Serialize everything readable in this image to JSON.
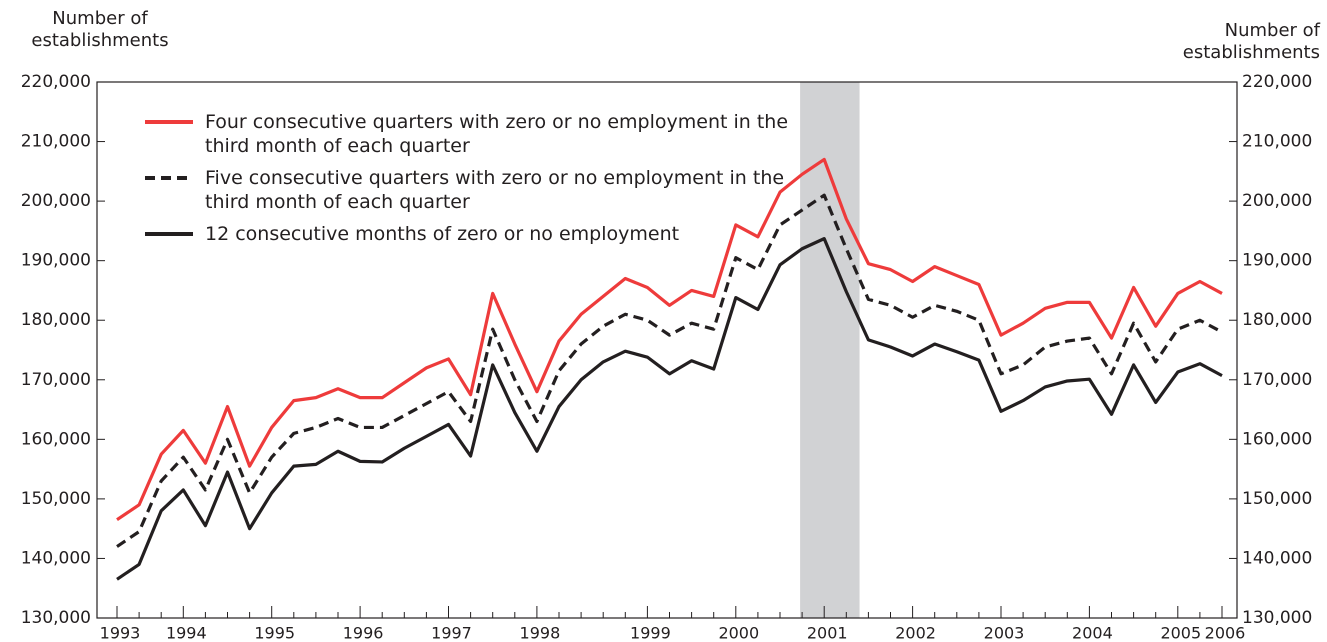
{
  "chart_data": {
    "type": "line",
    "y_label": "Number of establishments",
    "y2_label": "Number of establishments",
    "categories": [
      "1993",
      null,
      null,
      "1994",
      null,
      null,
      null,
      "1995",
      null,
      null,
      null,
      "1996",
      null,
      null,
      null,
      "1997",
      null,
      null,
      null,
      "1998",
      null,
      null,
      null,
      null,
      "1999",
      null,
      null,
      null,
      "2000",
      null,
      null,
      null,
      "2001",
      null,
      null,
      null,
      "2002",
      null,
      null,
      null,
      "2003",
      null,
      null,
      null,
      "2004",
      null,
      null,
      null,
      "2005",
      null,
      "2006"
    ],
    "series": [
      {
        "name": "Four consecutive quarters with zero or no employment in the third month of each quarter",
        "color": "#ee3b3b",
        "style": "solid",
        "values": [
          146500,
          149000,
          157500,
          161500,
          156000,
          165500,
          155500,
          162000,
          166500,
          167000,
          168500,
          167000,
          167000,
          169500,
          172000,
          173500,
          167500,
          184500,
          176000,
          168000,
          176500,
          181000,
          184000,
          187000,
          185500,
          182500,
          185000,
          184000,
          196000,
          194000,
          201500,
          204500,
          207000,
          197000,
          189500,
          188500,
          186500,
          189000,
          187500,
          186000,
          177500,
          179500,
          182000,
          183000,
          183000,
          177000,
          185500,
          179000,
          184500,
          186500,
          184500
        ]
      },
      {
        "name": "Five consecutive quarters with zero or no employment in the third month of each quarter",
        "color": "#231f20",
        "style": "dashed",
        "values": [
          142000,
          144500,
          153000,
          157000,
          151500,
          160000,
          151000,
          157000,
          161000,
          162000,
          163500,
          162000,
          162000,
          164000,
          166000,
          168000,
          163000,
          178500,
          170000,
          163000,
          171500,
          176000,
          179000,
          181000,
          180000,
          177500,
          179500,
          178500,
          190500,
          188500,
          196000,
          198500,
          201000,
          192000,
          183500,
          182500,
          180500,
          182500,
          181500,
          180000,
          171000,
          172500,
          175500,
          176500,
          177000,
          171000,
          179500,
          173000,
          178500,
          180000,
          178000
        ]
      },
      {
        "name": "12 consecutive months of zero or no employment",
        "color": "#231f20",
        "style": "solid",
        "values": [
          136500,
          139000,
          148000,
          151500,
          145500,
          154500,
          145000,
          151000,
          155500,
          155800,
          158000,
          156300,
          156200,
          158500,
          160500,
          162500,
          157200,
          172500,
          164500,
          158000,
          165500,
          170000,
          173000,
          174800,
          173800,
          171000,
          173200,
          171800,
          183800,
          181800,
          189300,
          192000,
          193700,
          184800,
          176700,
          175500,
          174000,
          176000,
          174700,
          173300,
          164700,
          166500,
          168800,
          169800,
          170100,
          164200,
          172500,
          166200,
          171300,
          172700,
          170700
        ]
      }
    ],
    "ylim": [
      130000,
      220000
    ],
    "yticks": [
      {
        "value": 130000,
        "label": "130,000"
      },
      {
        "value": 140000,
        "label": "140,000"
      },
      {
        "value": 150000,
        "label": "150,000"
      },
      {
        "value": 160000,
        "label": "160,000"
      },
      {
        "value": 170000,
        "label": "170,000"
      },
      {
        "value": 180000,
        "label": "180,000"
      },
      {
        "value": 190000,
        "label": "190,000"
      },
      {
        "value": 200000,
        "label": "200,000"
      },
      {
        "value": 210000,
        "label": "210,000"
      },
      {
        "value": 220000,
        "label": "220,000"
      }
    ],
    "y2lim": [
      130000,
      220000
    ],
    "y2ticks": [
      {
        "value": 130000,
        "label": "130,000"
      },
      {
        "value": 140000,
        "label": "140,000"
      },
      {
        "value": 150000,
        "label": "150,000"
      },
      {
        "value": 160000,
        "label": "160,000"
      },
      {
        "value": 170000,
        "label": "170,000"
      },
      {
        "value": 180000,
        "label": "180,000"
      },
      {
        "value": 190000,
        "label": "190,000"
      },
      {
        "value": 200000,
        "label": "200,000"
      },
      {
        "value": 210000,
        "label": "210,000"
      },
      {
        "value": 220000,
        "label": "220,000"
      }
    ]
  }
}
